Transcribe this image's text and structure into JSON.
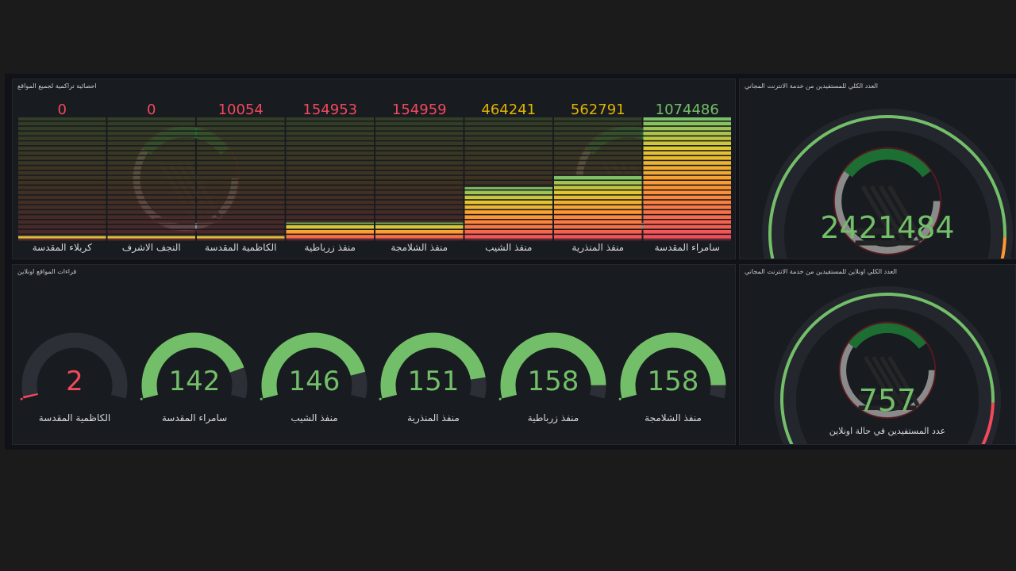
{
  "bars_panel": {
    "title": "احصائية تراكمية لجميع المواقع",
    "max_value": 1074486,
    "items": [
      {
        "label": "كربلاء المقدسة",
        "value": 0,
        "display": "0",
        "color": "#f2495c"
      },
      {
        "label": "النجف الاشرف",
        "value": 0,
        "display": "0",
        "color": "#f2495c"
      },
      {
        "label": "الكاظمية المقدسة",
        "value": 10054,
        "display": "10054",
        "color": "#f2495c"
      },
      {
        "label": "منفذ زرباطية",
        "value": 154953,
        "display": "154953",
        "color": "#f2495c"
      },
      {
        "label": "منفذ الشلامجة",
        "value": 154959,
        "display": "154959",
        "color": "#f2495c"
      },
      {
        "label": "منفذ الشيب",
        "value": 464241,
        "display": "464241",
        "color": "#e0b400"
      },
      {
        "label": "منفذ المنذرية",
        "value": 562791,
        "display": "562791",
        "color": "#e0b400"
      },
      {
        "label": "سامراء المقدسة",
        "value": 1074486,
        "display": "1074486",
        "color": "#73bf69"
      }
    ]
  },
  "gauge_top": {
    "title": "العدد الكلي للمستفيدين من خدمة الانترنت المجاني",
    "value": "2421484",
    "fraction": 1.0
  },
  "small_panel": {
    "title": "قراءات المواقع اونلاين",
    "max_value": 170,
    "items": [
      {
        "label": "الكاظمية المقدسة",
        "value": 2,
        "display": "2",
        "color": "#f2495c"
      },
      {
        "label": "سامراء المقدسة",
        "value": 142,
        "display": "142",
        "color": "#73bf69"
      },
      {
        "label": "منفذ الشيب",
        "value": 146,
        "display": "146",
        "color": "#73bf69"
      },
      {
        "label": "منفذ المنذرية",
        "value": 151,
        "display": "151",
        "color": "#73bf69"
      },
      {
        "label": "منفذ زرباطية",
        "value": 158,
        "display": "158",
        "color": "#73bf69"
      },
      {
        "label": "منفذ الشلامجة",
        "value": 158,
        "display": "158",
        "color": "#73bf69"
      }
    ]
  },
  "gauge_bottom": {
    "title": "العدد الكلي اونلاين للمستفيدين من خدمة الانترنت المجاني",
    "value": "757",
    "fraction": 1.0,
    "caption": "عدد المستفيدين في حالة اونلاين"
  },
  "colors": {
    "green": "#73bf69",
    "yellow": "#e0b400",
    "orange": "#ff9830",
    "red": "#f2495c",
    "track": "#2c2f36"
  }
}
